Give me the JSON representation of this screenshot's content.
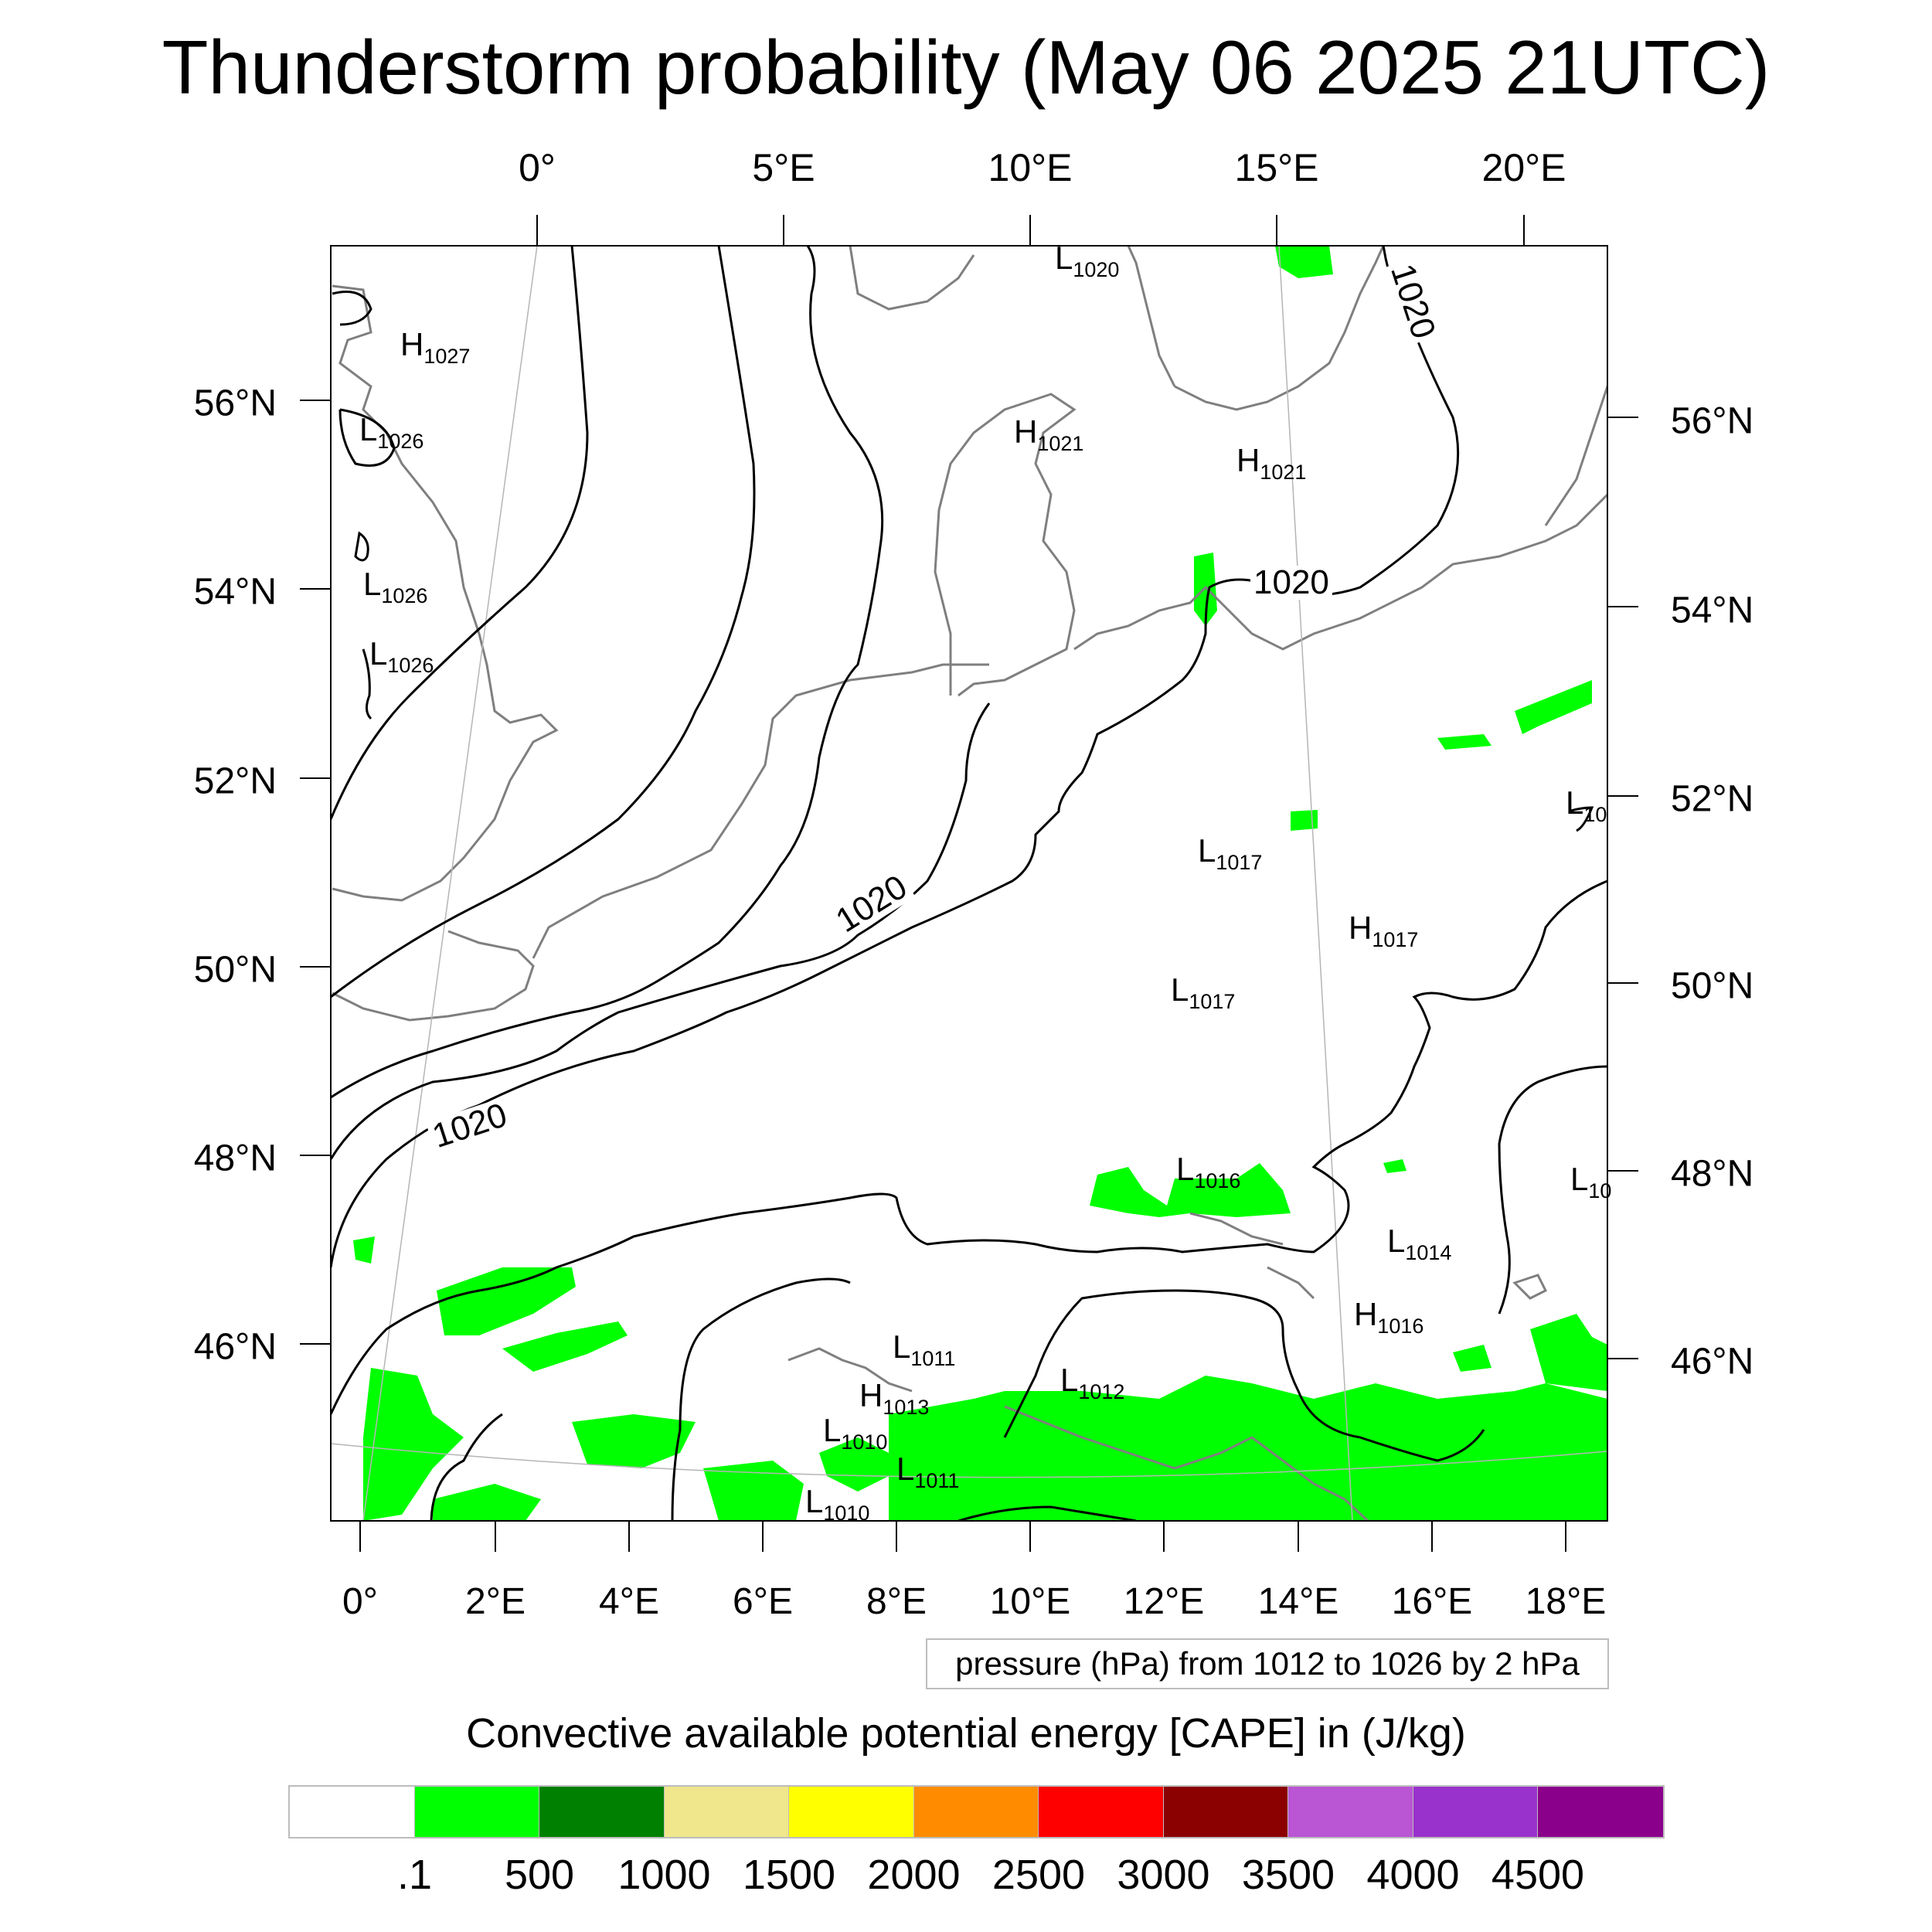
{
  "title": "Thunderstorm probability (May 06 2025 21UTC)",
  "axes": {
    "top_longitudes": [
      "0°",
      "5°E",
      "10°E",
      "15°E",
      "20°E"
    ],
    "bottom_longitudes": [
      "0°",
      "2°E",
      "4°E",
      "6°E",
      "8°E",
      "10°E",
      "12°E",
      "14°E",
      "16°E",
      "18°E"
    ],
    "left_latitudes": [
      "56°N",
      "54°N",
      "52°N",
      "50°N",
      "48°N",
      "46°N"
    ],
    "right_latitudes": [
      "56°N",
      "54°N",
      "52°N",
      "50°N",
      "48°N",
      "46°N"
    ]
  },
  "isobar_labels": [
    "1020",
    "1020",
    "1020",
    "1020"
  ],
  "pressure_centers": [
    {
      "type": "H",
      "value": "1027"
    },
    {
      "type": "L",
      "value": "1026"
    },
    {
      "type": "L",
      "value": "1026"
    },
    {
      "type": "L",
      "value": "1026"
    },
    {
      "type": "L",
      "value": "1020"
    },
    {
      "type": "H",
      "value": "1021"
    },
    {
      "type": "H",
      "value": "1021"
    },
    {
      "type": "L",
      "value": "1017"
    },
    {
      "type": "H",
      "value": "1017"
    },
    {
      "type": "L",
      "value": "1017"
    },
    {
      "type": "L",
      "value": "1016"
    },
    {
      "type": "L",
      "value": "1014"
    },
    {
      "type": "H",
      "value": "1016"
    },
    {
      "type": "L",
      "value": "1011"
    },
    {
      "type": "H",
      "value": "1013"
    },
    {
      "type": "L",
      "value": "1012"
    },
    {
      "type": "L",
      "value": "1010"
    },
    {
      "type": "L",
      "value": "1011"
    },
    {
      "type": "L",
      "value": "1010"
    },
    {
      "type": "L",
      "value": "10"
    },
    {
      "type": "L",
      "value": "10"
    }
  ],
  "pressure_note": "pressure (hPa) from 1012 to 1026 by 2 hPa",
  "legend": {
    "title": "Convective available potential energy [CAPE] in (J/kg)",
    "colors": [
      "#ffffff",
      "#00ff00",
      "#008000",
      "#f0e68c",
      "#ffff00",
      "#ff8c00",
      "#ff0000",
      "#8b0000",
      "#ba55d3",
      "#9932cc",
      "#8b008b"
    ],
    "ticks": [
      ".1",
      "500",
      "1000",
      "1500",
      "2000",
      "2500",
      "3000",
      "3500",
      "4000",
      "4500"
    ]
  }
}
